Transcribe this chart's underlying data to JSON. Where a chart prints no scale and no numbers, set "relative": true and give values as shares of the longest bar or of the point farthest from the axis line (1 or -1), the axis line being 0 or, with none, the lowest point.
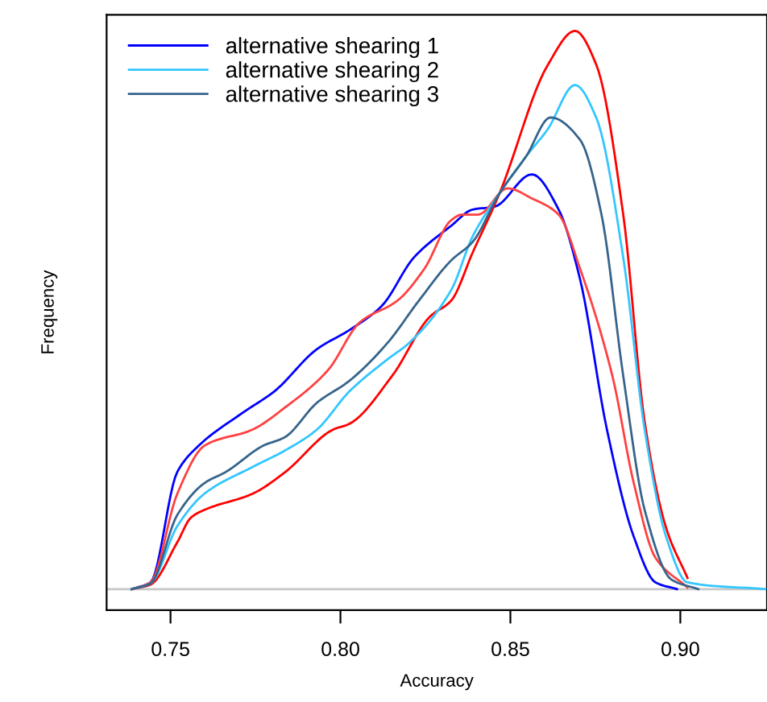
{
  "chart_data": {
    "type": "line",
    "xlabel": "Accuracy",
    "ylabel": "Frequency",
    "relative": true,
    "xlim": [
      0.7312,
      0.9255
    ],
    "xticks": [
      0.75,
      {
        "value": 0.8,
        "label": "0.80"
      },
      0.85,
      {
        "value": 0.9,
        "label": "0.90"
      }
    ],
    "legend": "top left",
    "grid": false,
    "line_style": "solid",
    "marker": "none",
    "ref_lines": [
      {
        "axis": "y",
        "value": 0,
        "label": null,
        "color": "#c8c8c8"
      }
    ],
    "series": [
      {
        "name": "alternative shearing 1",
        "color": "#0000ff",
        "x": [
          0.7386,
          0.7441,
          0.752,
          0.7583,
          0.771,
          0.7805,
          0.7931,
          0.8026,
          0.8121,
          0.8216,
          0.8326,
          0.8389,
          0.8453,
          0.8563,
          0.8642,
          0.8705,
          0.8784,
          0.8863,
          0.8927,
          0.899
        ],
        "values": [
          0,
          0.012,
          0.21,
          0.257,
          0.315,
          0.354,
          0.43,
          0.464,
          0.507,
          0.594,
          0.651,
          0.68,
          0.685,
          0.743,
          0.68,
          0.555,
          0.286,
          0.094,
          0.012,
          0
        ]
      },
      {
        "name": "alternative shearing 2",
        "color": "#33c6ff",
        "x": [
          0.7386,
          0.7441,
          0.752,
          0.76,
          0.7742,
          0.7836,
          0.7931,
          0.8026,
          0.8137,
          0.82,
          0.8326,
          0.8389,
          0.8468,
          0.8547,
          0.861,
          0.869,
          0.8753,
          0.8832,
          0.8895,
          0.8958,
          0.9021,
          0.925
        ],
        "values": [
          0,
          0.01,
          0.113,
          0.171,
          0.219,
          0.248,
          0.286,
          0.354,
          0.411,
          0.44,
          0.536,
          0.632,
          0.709,
          0.776,
          0.824,
          0.903,
          0.844,
          0.594,
          0.286,
          0.094,
          0.012,
          0
        ]
      },
      {
        "name": "alternative shearing 3",
        "color": "#36648b",
        "x": [
          0.7386,
          0.7441,
          0.752,
          0.76,
          0.7663,
          0.7773,
          0.7836,
          0.7931,
          0.8026,
          0.8137,
          0.8231,
          0.8326,
          0.8389,
          0.8468,
          0.8547,
          0.8618,
          0.8705,
          0.8768,
          0.8832,
          0.8895,
          0.8974,
          0.9053
        ],
        "values": [
          0,
          0.01,
          0.133,
          0.19,
          0.21,
          0.257,
          0.272,
          0.334,
          0.373,
          0.44,
          0.517,
          0.589,
          0.622,
          0.709,
          0.776,
          0.845,
          0.805,
          0.671,
          0.382,
          0.142,
          0.017,
          0
        ]
      },
      {
        "color": "#ff0000",
        "x": [
          0.7386,
          0.7441,
          0.752,
          0.756,
          0.76,
          0.7742,
          0.7836,
          0.7979,
          0.8026,
          0.8152,
          0.8263,
          0.8326,
          0.8389,
          0.8468,
          0.861,
          0.869,
          0.8753,
          0.8832,
          0.8895,
          0.8958,
          0.9021
        ],
        "values": [
          0,
          0.008,
          0.084,
          0.128,
          0.142,
          0.171,
          0.209,
          0.286,
          0.296,
          0.382,
          0.488,
          0.517,
          0.603,
          0.709,
          0.939,
          1.0,
          0.939,
          0.671,
          0.3,
          0.11,
          0.02
        ]
      },
      {
        "color": "#ff4040",
        "x": [
          0.7386,
          0.7441,
          0.752,
          0.76,
          0.7742,
          0.7836,
          0.7963,
          0.8057,
          0.8168,
          0.8247,
          0.8326,
          0.8358,
          0.8405,
          0.8492,
          0.8563,
          0.8642,
          0.8705,
          0.88,
          0.8863,
          0.8927,
          0.9021
        ],
        "values": [
          0,
          0.012,
          0.171,
          0.257,
          0.286,
          0.325,
          0.392,
          0.478,
          0.517,
          0.574,
          0.661,
          0.671,
          0.671,
          0.718,
          0.7,
          0.671,
          0.574,
          0.382,
          0.19,
          0.056,
          0.003
        ]
      }
    ]
  }
}
